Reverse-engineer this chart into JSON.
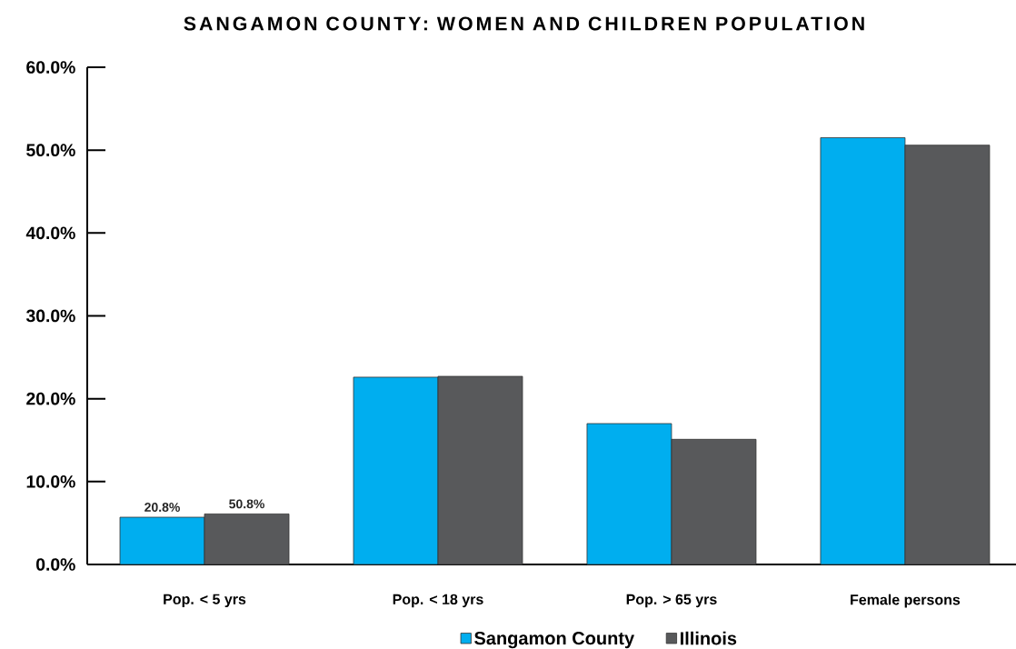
{
  "chart_data": {
    "type": "bar",
    "title": "SANGAMON COUNTY: WOMEN AND CHILDREN POPULATION",
    "categories": [
      "Pop. < 5 yrs",
      "Pop. < 18 yrs",
      "Pop. > 65 yrs",
      "Female persons"
    ],
    "series": [
      {
        "name": "Sangamon County",
        "color": "#00aeef",
        "values": [
          5.7,
          22.6,
          17.0,
          51.5
        ]
      },
      {
        "name": "Illinois",
        "color": "#58595b",
        "values": [
          6.1,
          22.7,
          15.1,
          50.6
        ]
      }
    ],
    "annotations": [
      "20.8%",
      "50.8%"
    ],
    "ylim": [
      0,
      60
    ],
    "yticks": [
      {
        "value": 0,
        "label": "0.0%"
      },
      {
        "value": 10,
        "label": "10.0%"
      },
      {
        "value": 20,
        "label": "20.0%"
      },
      {
        "value": 30,
        "label": "30.0%"
      },
      {
        "value": 40,
        "label": "40.0%"
      },
      {
        "value": 50,
        "label": "50.0%"
      },
      {
        "value": 60,
        "label": "60.0%"
      }
    ],
    "grid": false,
    "legend": "bottom"
  }
}
